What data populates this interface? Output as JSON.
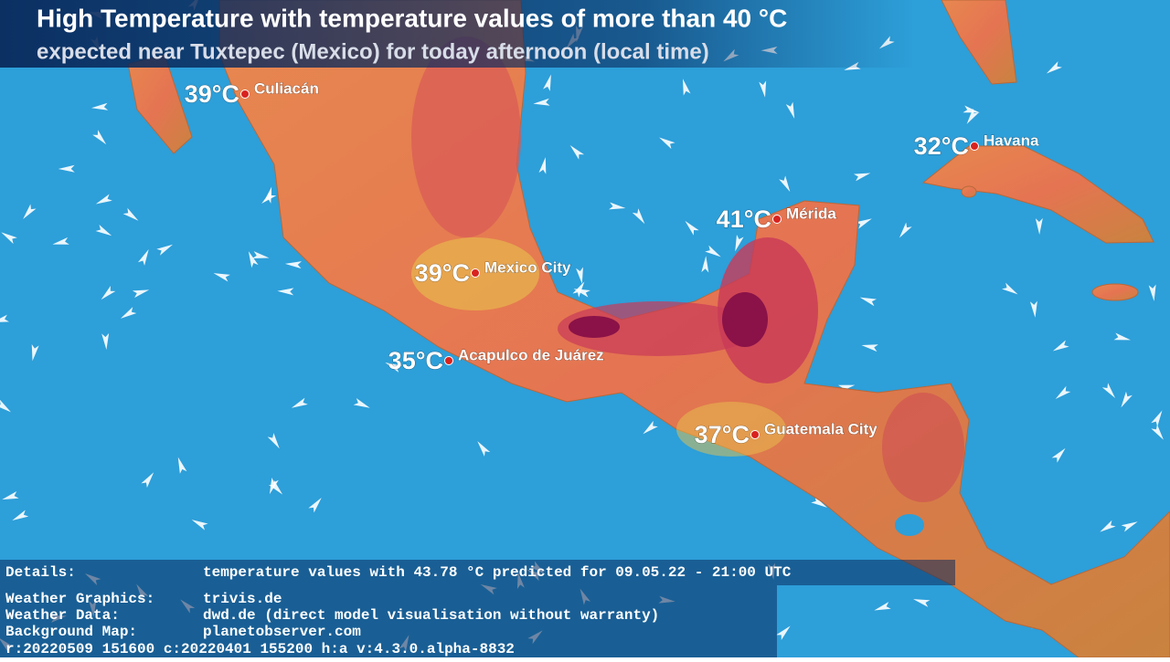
{
  "header": {
    "title": "High Temperature with temperature values of more than 40 °C",
    "subtitle": "expected near Tuxtepec (Mexico) for today afternoon (local time)"
  },
  "cities": [
    {
      "temp": "39°C",
      "name": "Culiacán"
    },
    {
      "temp": "32°C",
      "name": "Havana"
    },
    {
      "temp": "41°C",
      "name": "Mérida"
    },
    {
      "temp": "39°C",
      "name": "Mexico City"
    },
    {
      "temp": "35°C",
      "name": "Acapulco de Juárez"
    },
    {
      "temp": "37°C",
      "name": "Guatemala City"
    }
  ],
  "footer": {
    "rows": [
      {
        "label": "Details:",
        "text": "temperature values with 43.78 °C predicted for 09.05.22 - 21:00 UTC"
      },
      {
        "label": "Weather Graphics:",
        "text": "trivis.de"
      },
      {
        "label": "Weather Data:",
        "text": "dwd.de (direct model visualisation without warranty)"
      },
      {
        "label": "Background Map:",
        "text": "planetobserver.com"
      }
    ],
    "version": "r:20220509 151600 c:20220401 155200 h:a v:4.3.0.alpha-8832"
  }
}
